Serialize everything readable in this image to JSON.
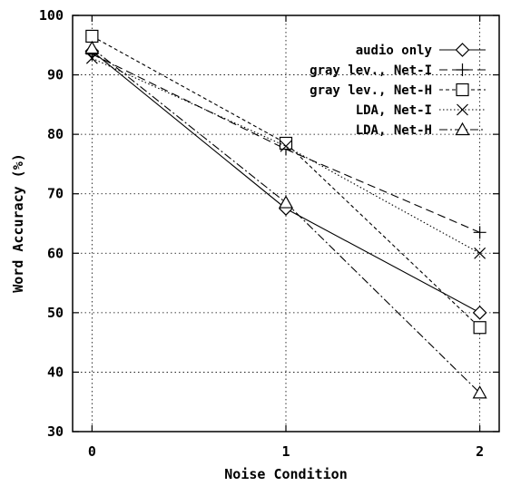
{
  "chart_data": {
    "type": "line",
    "title": "",
    "xlabel": "Noise Condition",
    "ylabel": "Word Accuracy (%)",
    "x": [
      0,
      1,
      2
    ],
    "x_ticks": [
      "0",
      "1",
      "2"
    ],
    "y_ticks": [
      "30",
      "40",
      "50",
      "60",
      "70",
      "80",
      "90",
      "100"
    ],
    "xlim": [
      -0.1,
      2.1
    ],
    "ylim": [
      30,
      100
    ],
    "grid": true,
    "legend_position": "top-right",
    "series": [
      {
        "name": "audio only",
        "values": [
          94,
          67.5,
          50
        ],
        "marker": "diamond",
        "dash": ""
      },
      {
        "name": "gray lev., Net-I",
        "values": [
          93.5,
          77.5,
          63.5
        ],
        "marker": "plus",
        "dash": "9 5"
      },
      {
        "name": "gray lev., Net-H",
        "values": [
          96.5,
          78.5,
          47.5
        ],
        "marker": "square",
        "dash": "4 3"
      },
      {
        "name": "LDA, Net-I",
        "values": [
          92.8,
          78,
          60
        ],
        "marker": "cross",
        "dash": "1.5 2.5"
      },
      {
        "name": "LDA, Net-H",
        "values": [
          94.5,
          68.5,
          36.5
        ],
        "marker": "triangle",
        "dash": "9 3 2 3"
      }
    ]
  }
}
